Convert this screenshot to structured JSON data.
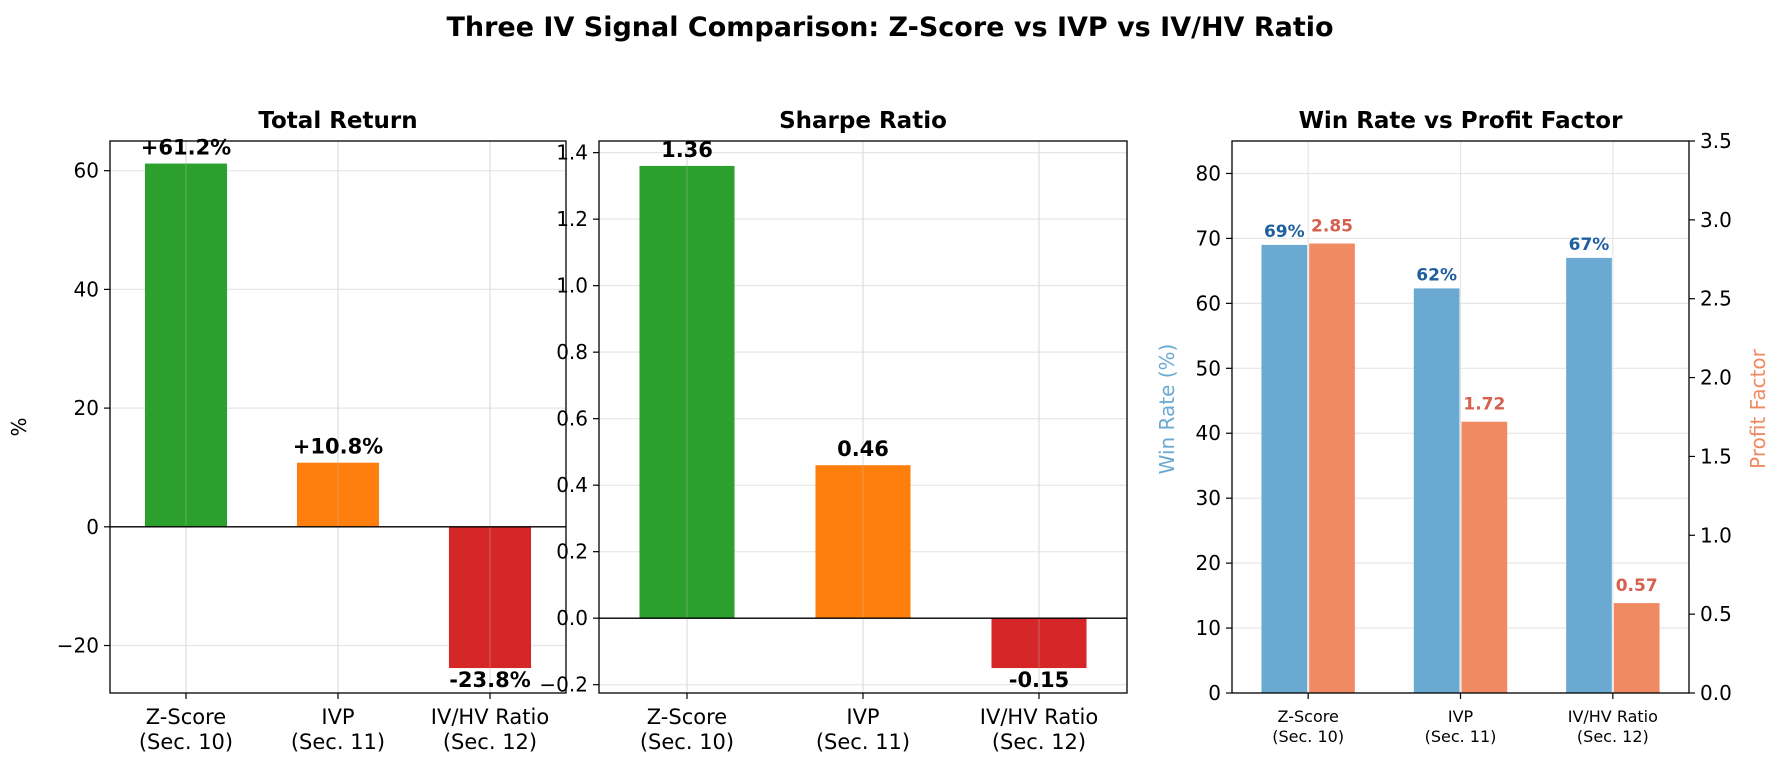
{
  "figure": {
    "title": "Three IV Signal Comparison: Z-Score vs IVP vs IV/HV Ratio"
  },
  "colors": {
    "green": "#2ca02c",
    "orange": "#ff7f0e",
    "red": "#d62728",
    "winrate": "#6aaad2",
    "profit": "#f08a62",
    "winrate_text": "#1f5f9f",
    "profit_text": "#d6604d",
    "grid": "#e6e6e6",
    "axis": "#000000"
  },
  "chart_data": [
    {
      "type": "bar",
      "title": "Total Return",
      "ylabel": "%",
      "xlabel": "",
      "categories": [
        "Z-Score\n(Sec. 10)",
        "IVP\n(Sec. 11)",
        "IV/HV Ratio\n(Sec. 12)"
      ],
      "values": [
        61.2,
        10.8,
        -23.8
      ],
      "labels": [
        "+61.2%",
        "+10.8%",
        "-23.8%"
      ],
      "bar_colors": [
        "green",
        "orange",
        "red"
      ],
      "ylim": [
        -28,
        65
      ],
      "yticks": [
        -20,
        0,
        20,
        40,
        60
      ],
      "ytick_labels": [
        "−20",
        "0",
        "20",
        "40",
        "60"
      ],
      "grid": true
    },
    {
      "type": "bar",
      "title": "Sharpe Ratio",
      "ylabel": "",
      "xlabel": "",
      "categories": [
        "Z-Score\n(Sec. 10)",
        "IVP\n(Sec. 11)",
        "IV/HV Ratio\n(Sec. 12)"
      ],
      "values": [
        1.36,
        0.46,
        -0.15
      ],
      "labels": [
        "1.36",
        "0.46",
        "-0.15"
      ],
      "bar_colors": [
        "green",
        "orange",
        "red"
      ],
      "ylim": [
        -0.225,
        1.435
      ],
      "yticks": [
        -0.2,
        0.0,
        0.2,
        0.4,
        0.6,
        0.8,
        1.0,
        1.2,
        1.4
      ],
      "ytick_labels": [
        "−0.2",
        "0.0",
        "0.2",
        "0.4",
        "0.6",
        "0.8",
        "1.0",
        "1.2",
        "1.4"
      ],
      "grid": true
    },
    {
      "type": "bar",
      "title": "Win Rate vs Profit Factor",
      "categories": [
        "Z-Score\n(Sec. 10)",
        "IVP\n(Sec. 11)",
        "IV/HV Ratio\n(Sec. 12)"
      ],
      "series": [
        {
          "name": "Win Rate (%)",
          "axis": "left",
          "values": [
            69,
            62.3,
            67
          ],
          "labels": [
            "69%",
            "62%",
            "67%"
          ],
          "color": "winrate",
          "label_color": "winrate_text"
        },
        {
          "name": "Profit Factor",
          "axis": "right",
          "values": [
            2.85,
            1.72,
            0.57
          ],
          "labels": [
            "2.85",
            "1.72",
            "0.57"
          ],
          "color": "profit",
          "label_color": "profit_text"
        }
      ],
      "ylabel": "Win Rate (%)",
      "ylabel_right": "Profit Factor",
      "ylim": [
        0,
        85
      ],
      "yticks": [
        0,
        10,
        20,
        30,
        40,
        50,
        60,
        70,
        80
      ],
      "ytick_labels": [
        "0",
        "10",
        "20",
        "30",
        "40",
        "50",
        "60",
        "70",
        "80"
      ],
      "ylim_right": [
        0,
        3.5
      ],
      "yticks_right": [
        0,
        0.5,
        1.0,
        1.5,
        2.0,
        2.5,
        3.0,
        3.5
      ],
      "ytick_labels_right": [
        "0.0",
        "0.5",
        "1.0",
        "1.5",
        "2.0",
        "2.5",
        "3.0",
        "3.5"
      ],
      "grid": true
    }
  ]
}
